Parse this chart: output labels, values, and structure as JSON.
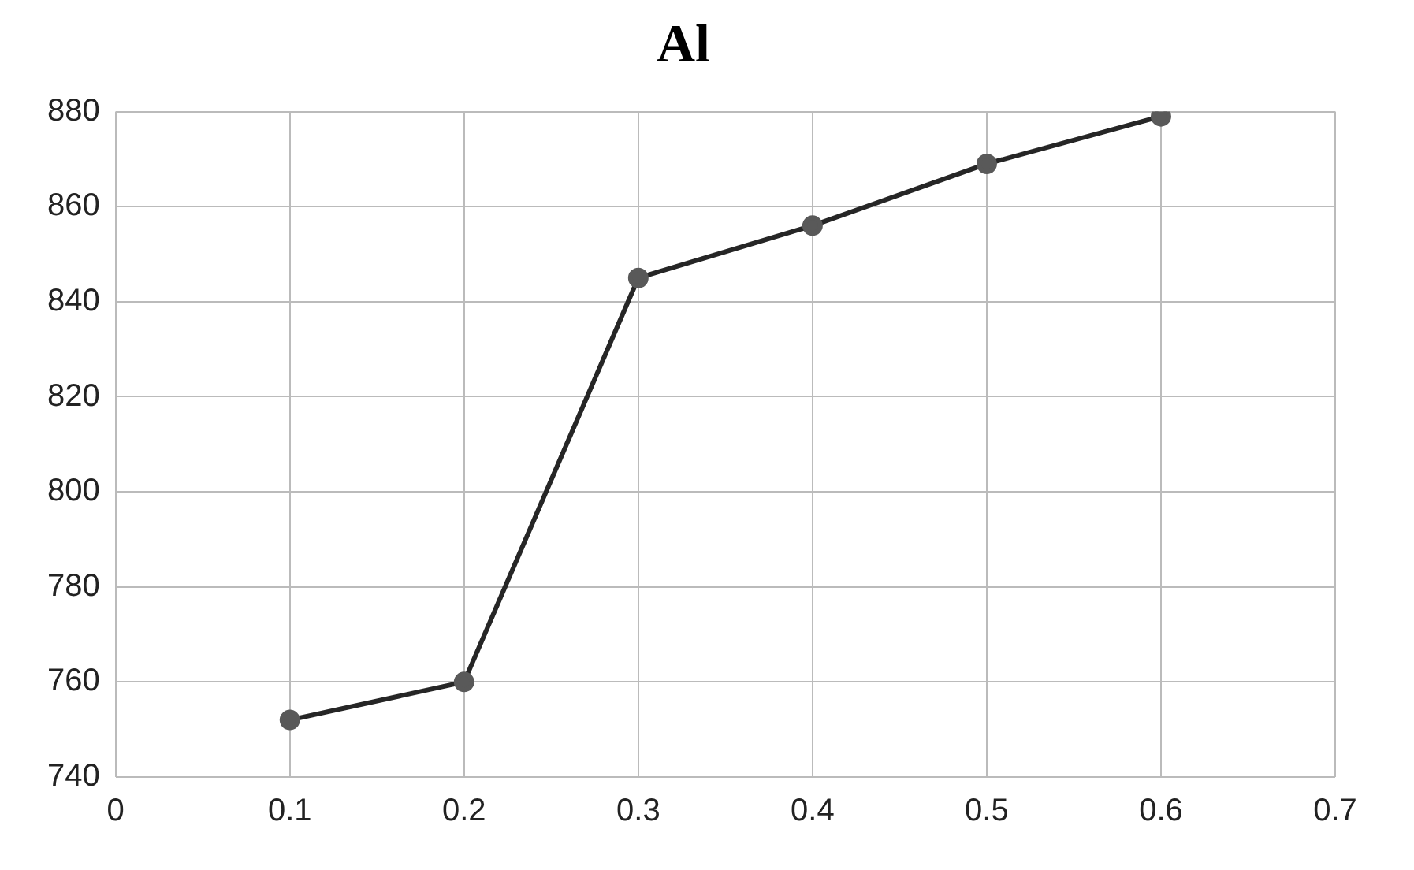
{
  "chart_data": {
    "type": "line",
    "title": "Al",
    "x": [
      0.1,
      0.2,
      0.3,
      0.4,
      0.5,
      0.6
    ],
    "series": [
      {
        "color": "#262626",
        "values": [
          752,
          760,
          845,
          856,
          869,
          879
        ]
      }
    ],
    "xlim": [
      0,
      0.7
    ],
    "xticks": [
      0,
      0.1,
      0.2,
      0.3,
      0.4,
      0.5,
      0.6,
      0.7
    ],
    "ylim": [
      740,
      880
    ],
    "yticks": [
      740,
      760,
      780,
      800,
      820,
      840,
      860,
      880
    ],
    "grid": true,
    "legend": false,
    "marker": "circle",
    "line_style": "solid"
  }
}
